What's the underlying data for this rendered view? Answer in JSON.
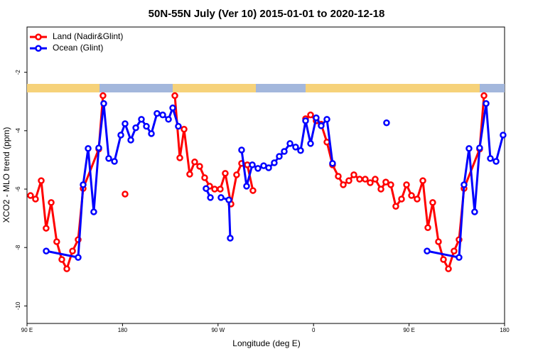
{
  "chart_data": {
    "type": "line",
    "title": "50N-55N July (Ver 10)   2015-01-01 to 2020-12-18",
    "x_label": "Longitude (deg E)",
    "y_label": "XCO2 - MLO trend (ppm)",
    "xlim": [
      90,
      540
    ],
    "xticks": [
      {
        "value": 90,
        "label": "90 E"
      },
      {
        "value": 180,
        "label": "180"
      },
      {
        "value": 270,
        "label": "90 W"
      },
      {
        "value": 360,
        "label": "0"
      },
      {
        "value": 450,
        "label": "90 E"
      },
      {
        "value": 540,
        "label": "180"
      }
    ],
    "ylim": [
      -10.6,
      -0.45
    ],
    "yticks": [
      -2,
      -4,
      -6,
      -8,
      -10
    ],
    "legend": "top-left",
    "series": [
      {
        "name": "Land (Nadir&Glint)",
        "color": "#ff0000",
        "x": [
          93.3,
          98,
          103.4,
          108,
          112.8,
          118,
          122.8,
          127.5,
          132.9,
          138.2,
          142.9,
          157.6,
          161.6,
          null,
          182.4,
          null,
          229.3,
          234,
          238,
          243.3,
          248,
          252.7,
          257.4,
          262.1,
          266.8,
          272.1,
          276.8,
          282.2,
          287.5,
          292.2,
          297.6,
          302.9,
          null,
          352.5,
          357.2,
          362.5,
          367.2,
          372.6,
          377.9,
          383.3,
          388,
          393.3,
          398,
          403.4,
          408.7,
          413.4,
          418.1,
          423.5,
          428.1,
          432.8,
          437.5,
          442.9,
          447.6,
          452.3,
          457.6,
          463,
          467.7,
          472.3,
          477.7,
          482.4,
          487.1,
          492.4,
          497.1,
          501.8,
          516.5,
          520.6
        ],
        "values": [
          -6.22,
          -6.34,
          -5.71,
          -7.34,
          -6.46,
          -7.8,
          -8.41,
          -8.73,
          -8.12,
          -7.73,
          -5.98,
          -4.63,
          -2.8,
          null,
          -6.17,
          null,
          -2.8,
          -4.93,
          -3.95,
          -5.49,
          -5.07,
          -5.22,
          -5.61,
          -5.9,
          -6.0,
          -6.0,
          -5.46,
          -6.51,
          -5.51,
          -5.12,
          -5.17,
          -6.05,
          null,
          -3.59,
          -3.46,
          -3.66,
          -3.78,
          -4.39,
          -5.17,
          -5.56,
          -5.85,
          -5.71,
          -5.51,
          -5.66,
          -5.66,
          -5.78,
          -5.66,
          -6.0,
          -5.76,
          -5.85,
          -6.59,
          -6.34,
          -5.85,
          -6.22,
          -6.34,
          -5.71,
          -7.32,
          -6.46,
          -7.8,
          -8.41,
          -8.73,
          -8.12,
          -7.73,
          -5.98,
          -4.63,
          -2.8
        ]
      },
      {
        "name": "Ocean (Glint)",
        "color": "#0000ff",
        "x": [
          108.1,
          138.2,
          142.9,
          147.6,
          152.9,
          157.6,
          162.3,
          167,
          172.4,
          178.4,
          182.4,
          187.8,
          192.5,
          197.8,
          202.5,
          207.2,
          212.5,
          217.9,
          223.3,
          227.3,
          232.6,
          null,
          258.7,
          262.8,
          null,
          272.8,
          280.2,
          281.5,
          null,
          292.2,
          296.9,
          302.3,
          307.6,
          313,
          317.7,
          323,
          327.7,
          332.4,
          337.8,
          343.1,
          347.8,
          352.5,
          357.2,
          362.5,
          367.2,
          372.6,
          377.9,
          null,
          428.8,
          null,
          467,
          497.1,
          501.8,
          506.5,
          511.8,
          516.5,
          522.6,
          526.6,
          532,
          538.6
        ],
        "values": [
          -8.12,
          -8.34,
          -5.85,
          -4.61,
          -6.78,
          -4.59,
          -3.07,
          -4.95,
          -5.05,
          -4.15,
          -3.76,
          -4.32,
          -3.9,
          -3.61,
          -3.85,
          -4.1,
          -3.41,
          -3.46,
          -3.61,
          -3.22,
          -3.85,
          null,
          -5.98,
          -6.29,
          null,
          -6.29,
          -6.37,
          -7.68,
          null,
          -4.66,
          -5.9,
          -5.17,
          -5.29,
          -5.2,
          -5.27,
          -5.1,
          -4.88,
          -4.71,
          -4.44,
          -4.56,
          -4.68,
          -3.66,
          -4.44,
          -3.56,
          -3.83,
          -3.61,
          -5.12,
          null,
          -3.73,
          null,
          -8.12,
          -8.34,
          -5.85,
          -4.61,
          -6.78,
          -4.59,
          -3.07,
          -4.95,
          -5.05,
          -4.15
        ]
      }
    ]
  }
}
